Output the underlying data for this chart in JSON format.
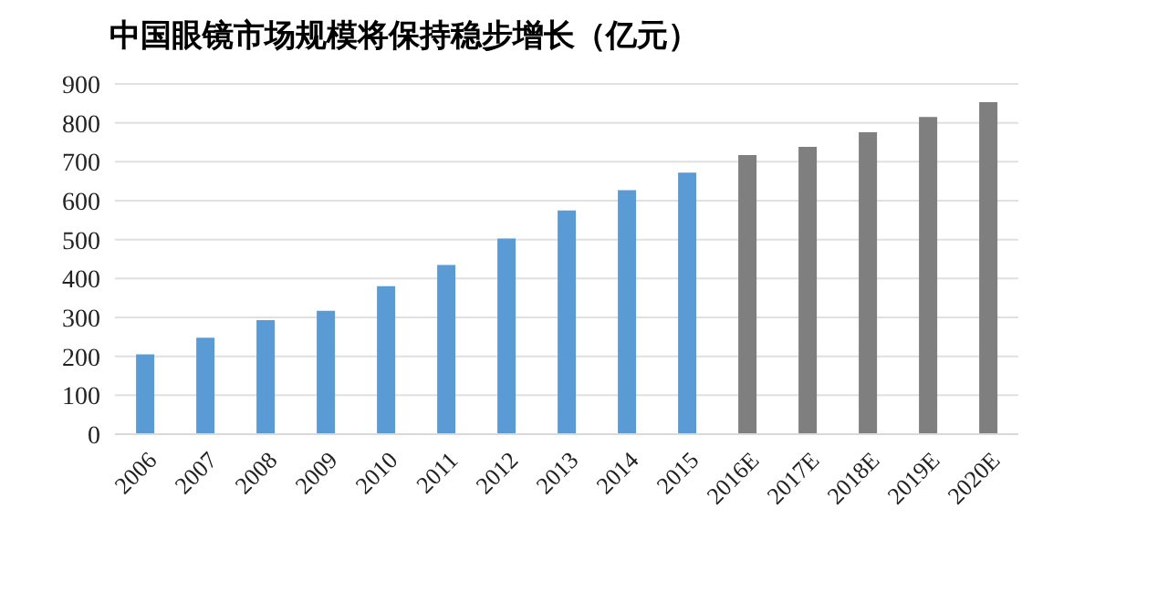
{
  "chart_data": {
    "type": "bar",
    "title": "中国眼镜市场规模将保持稳步增长（亿元）",
    "categories": [
      "2006",
      "2007",
      "2008",
      "2009",
      "2010",
      "2011",
      "2012",
      "2013",
      "2014",
      "2015",
      "2016E",
      "2017E",
      "2018E",
      "2019E",
      "2020E"
    ],
    "values": [
      205,
      248,
      293,
      317,
      380,
      435,
      503,
      575,
      627,
      672,
      717,
      738,
      776,
      815,
      853
    ],
    "colors": [
      "#5b9bd5",
      "#5b9bd5",
      "#5b9bd5",
      "#5b9bd5",
      "#5b9bd5",
      "#5b9bd5",
      "#5b9bd5",
      "#5b9bd5",
      "#5b9bd5",
      "#5b9bd5",
      "#7f7f7f",
      "#7f7f7f",
      "#7f7f7f",
      "#7f7f7f",
      "#7f7f7f"
    ],
    "ylim": [
      0,
      900
    ],
    "yticks": [
      0,
      100,
      200,
      300,
      400,
      500,
      600,
      700,
      800,
      900
    ],
    "grid": "y"
  }
}
